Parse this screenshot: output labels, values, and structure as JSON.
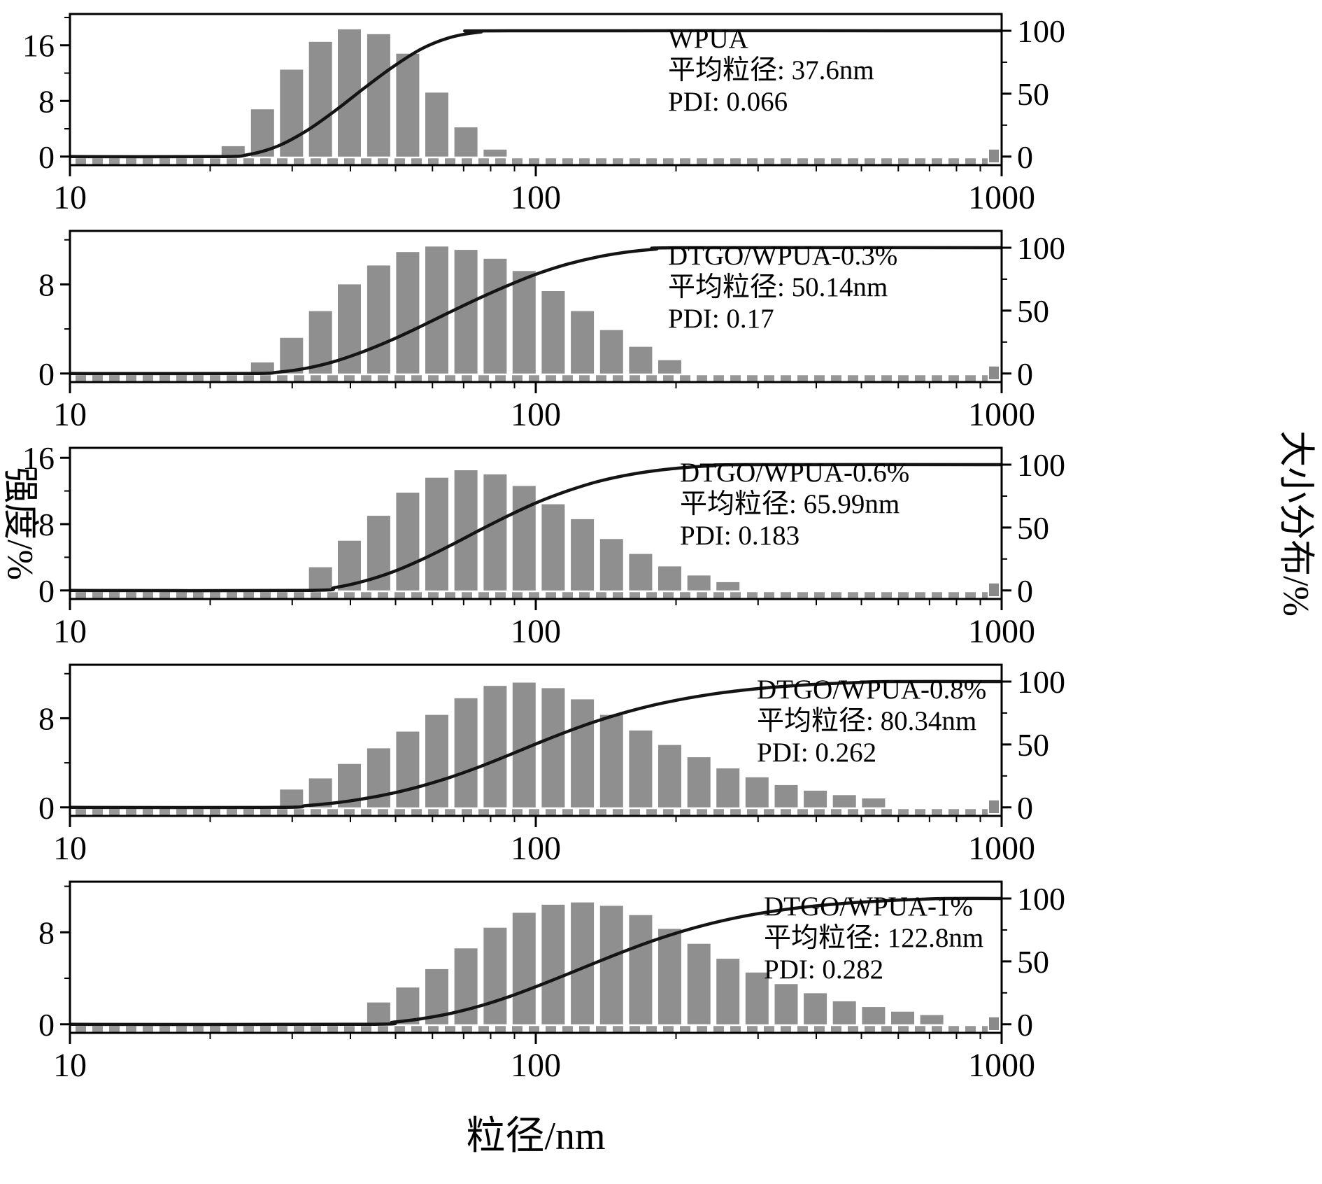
{
  "chart_data": {
    "type": "bar",
    "overlay": "cumulative-line",
    "title": "",
    "xlabel": "粒径/nm",
    "ylabel_left": "强度/%",
    "ylabel_right": "大小分布/%",
    "x_scale": "log",
    "x_range": [
      10,
      1000
    ],
    "x_ticks": [
      10,
      100,
      1000
    ],
    "right_ticks": [
      0,
      50,
      100
    ],
    "right_axis_range": [
      0,
      100
    ],
    "bin_ratio": 1.1548,
    "bar_color": "#8f8f8f",
    "baseline_dash_color": "#979797",
    "curve_color": "#141414",
    "panels": [
      {
        "name": "WPUA",
        "annotation": [
          "WPUA",
          "平均粒径: 37.6nm",
          "PDI: 0.066"
        ],
        "mean_nm": 37.6,
        "pdi": 0.066,
        "yticks": [
          0,
          8,
          16
        ],
        "ymax_display": 20.5,
        "ann_x": 955,
        "centers": [
          22.4,
          25.9,
          29.9,
          34.5,
          39.8,
          46.0,
          53.1,
          61.3,
          70.8,
          81.8
        ],
        "values": [
          1.5,
          6.8,
          12.5,
          16.5,
          18.3,
          17.6,
          14.8,
          9.2,
          4.2,
          1.0
        ]
      },
      {
        "name": "DTGO/WPUA-0.3%",
        "annotation": [
          "DTGO/WPUA-0.3%",
          "平均粒径: 50.14nm",
          "PDI: 0.17"
        ],
        "mean_nm": 50.14,
        "pdi": 0.17,
        "yticks": [
          0,
          8
        ],
        "ymax_display": 12.8,
        "ann_x": 955,
        "centers": [
          25.9,
          29.9,
          34.5,
          39.8,
          46.0,
          53.1,
          61.3,
          70.8,
          81.8,
          94.4,
          109.0,
          125.9,
          145.4,
          167.9,
          193.9
        ],
        "values": [
          1.0,
          3.2,
          5.6,
          8.0,
          9.7,
          10.9,
          11.4,
          11.1,
          10.3,
          9.2,
          7.4,
          5.6,
          3.9,
          2.4,
          1.2
        ]
      },
      {
        "name": "DTGO/WPUA-0.6%",
        "annotation": [
          "DTGO/WPUA-0.6%",
          "平均粒径: 65.99nm",
          "PDI: 0.183"
        ],
        "mean_nm": 65.99,
        "pdi": 0.183,
        "yticks": [
          0,
          8,
          16
        ],
        "ymax_display": 17.2,
        "ann_x": 972,
        "centers": [
          34.5,
          39.8,
          46.0,
          53.1,
          61.3,
          70.8,
          81.8,
          94.4,
          109.0,
          125.9,
          145.4,
          167.9,
          193.9,
          223.9,
          258.5
        ],
        "values": [
          2.8,
          6.0,
          9.0,
          11.8,
          13.6,
          14.5,
          14.0,
          12.6,
          10.4,
          8.6,
          6.2,
          4.4,
          2.9,
          1.8,
          1.0
        ]
      },
      {
        "name": "DTGO/WPUA-0.8%",
        "annotation": [
          "DTGO/WPUA-0.8%",
          "平均粒径: 80.34nm",
          "PDI: 0.262"
        ],
        "mean_nm": 80.34,
        "pdi": 0.262,
        "yticks": [
          0,
          8
        ],
        "ymax_display": 12.8,
        "ann_x": 1082,
        "centers": [
          29.9,
          34.5,
          39.8,
          46.0,
          53.1,
          61.3,
          70.8,
          81.8,
          94.4,
          109.0,
          125.9,
          145.4,
          167.9,
          193.9,
          223.9,
          258.5,
          298.5,
          344.7,
          398.1,
          459.7,
          530.9
        ],
        "values": [
          1.6,
          2.6,
          3.9,
          5.3,
          6.8,
          8.3,
          9.8,
          10.9,
          11.2,
          10.7,
          9.7,
          8.3,
          6.9,
          5.6,
          4.5,
          3.5,
          2.7,
          2.0,
          1.5,
          1.1,
          0.8
        ]
      },
      {
        "name": "DTGO/WPUA-1%",
        "annotation": [
          "DTGO/WPUA-1%",
          "平均粒径: 122.8nm",
          "PDI: 0.282"
        ],
        "mean_nm": 122.8,
        "pdi": 0.282,
        "yticks": [
          0,
          8
        ],
        "ymax_display": 12.4,
        "ann_x": 1092,
        "centers": [
          46.0,
          53.1,
          61.3,
          70.8,
          81.8,
          94.4,
          109.0,
          125.9,
          145.4,
          167.9,
          193.9,
          223.9,
          258.5,
          298.5,
          344.7,
          398.1,
          459.7,
          530.9,
          613.1,
          708.0
        ],
        "values": [
          1.9,
          3.2,
          4.8,
          6.6,
          8.4,
          9.7,
          10.4,
          10.6,
          10.3,
          9.5,
          8.3,
          7.0,
          5.7,
          4.5,
          3.5,
          2.7,
          2.0,
          1.5,
          1.1,
          0.8
        ]
      }
    ]
  }
}
